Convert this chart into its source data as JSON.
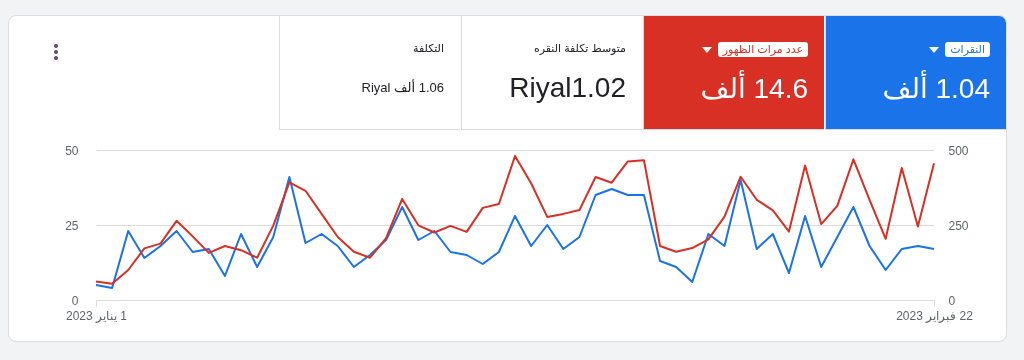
{
  "chart_data": {
    "type": "line",
    "x": [
      "2023-01-01",
      "2023-01-02",
      "2023-01-03",
      "2023-01-04",
      "2023-01-05",
      "2023-01-06",
      "2023-01-07",
      "2023-01-08",
      "2023-01-09",
      "2023-01-10",
      "2023-01-11",
      "2023-01-12",
      "2023-01-13",
      "2023-01-14",
      "2023-01-15",
      "2023-01-16",
      "2023-01-17",
      "2023-01-18",
      "2023-01-19",
      "2023-01-20",
      "2023-01-21",
      "2023-01-22",
      "2023-01-23",
      "2023-01-24",
      "2023-01-25",
      "2023-01-26",
      "2023-01-27",
      "2023-01-28",
      "2023-01-29",
      "2023-01-30",
      "2023-01-31",
      "2023-02-01",
      "2023-02-02",
      "2023-02-03",
      "2023-02-04",
      "2023-02-05",
      "2023-02-06",
      "2023-02-07",
      "2023-02-08",
      "2023-02-09",
      "2023-02-10",
      "2023-02-11",
      "2023-02-12",
      "2023-02-13",
      "2023-02-14",
      "2023-02-15",
      "2023-02-16",
      "2023-02-17",
      "2023-02-18",
      "2023-02-19",
      "2023-02-20",
      "2023-02-21",
      "2023-02-22"
    ],
    "series": [
      {
        "name": "النقرات",
        "color": "#1a73e8",
        "values": [
          5,
          4,
          23,
          14,
          18,
          23,
          16,
          17,
          8,
          22,
          11,
          21,
          41,
          19,
          22,
          18,
          11,
          15,
          20,
          31,
          20,
          23,
          16,
          15,
          12,
          16,
          28,
          18,
          25,
          17,
          21,
          35,
          37,
          35,
          35,
          13,
          11,
          6,
          22,
          18,
          40,
          17,
          22,
          9,
          28,
          11,
          21,
          31,
          18,
          10,
          17,
          18,
          17
        ]
      },
      {
        "name": "عدد مرات الظهور",
        "color": "#d93025",
        "axis": "y2",
        "values": [
          62,
          54,
          100,
          172,
          188,
          264,
          212,
          157,
          180,
          166,
          141,
          248,
          392,
          364,
          287,
          210,
          161,
          141,
          206,
          337,
          249,
          225,
          247,
          227,
          307,
          320,
          480,
          389,
          277,
          287,
          300,
          410,
          391,
          462,
          466,
          180,
          161,
          173,
          202,
          278,
          411,
          334,
          299,
          228,
          448,
          253,
          314,
          469,
          334,
          204,
          440,
          245,
          456
        ]
      }
    ],
    "xlim": [
      "2023-01-01",
      "2023-02-22"
    ],
    "xticks": [
      {
        "value": "2023-01-01",
        "label": "1 يناير 2023"
      },
      {
        "value": "2023-02-22",
        "label": "22 فبراير 2023"
      }
    ],
    "ylim": [
      0,
      50
    ],
    "yticks": [
      0,
      25,
      50
    ],
    "y2lim": [
      0,
      500
    ],
    "y2ticks": [
      0,
      250,
      500
    ],
    "grid": "y",
    "legend": "top",
    "annotations": [
      "1.04 ألف",
      "14.6 ألف",
      "متوسط تكلفة النقره",
      "Riyal1.02",
      "التكلفة",
      "1.06 ألف Riyal"
    ]
  }
}
